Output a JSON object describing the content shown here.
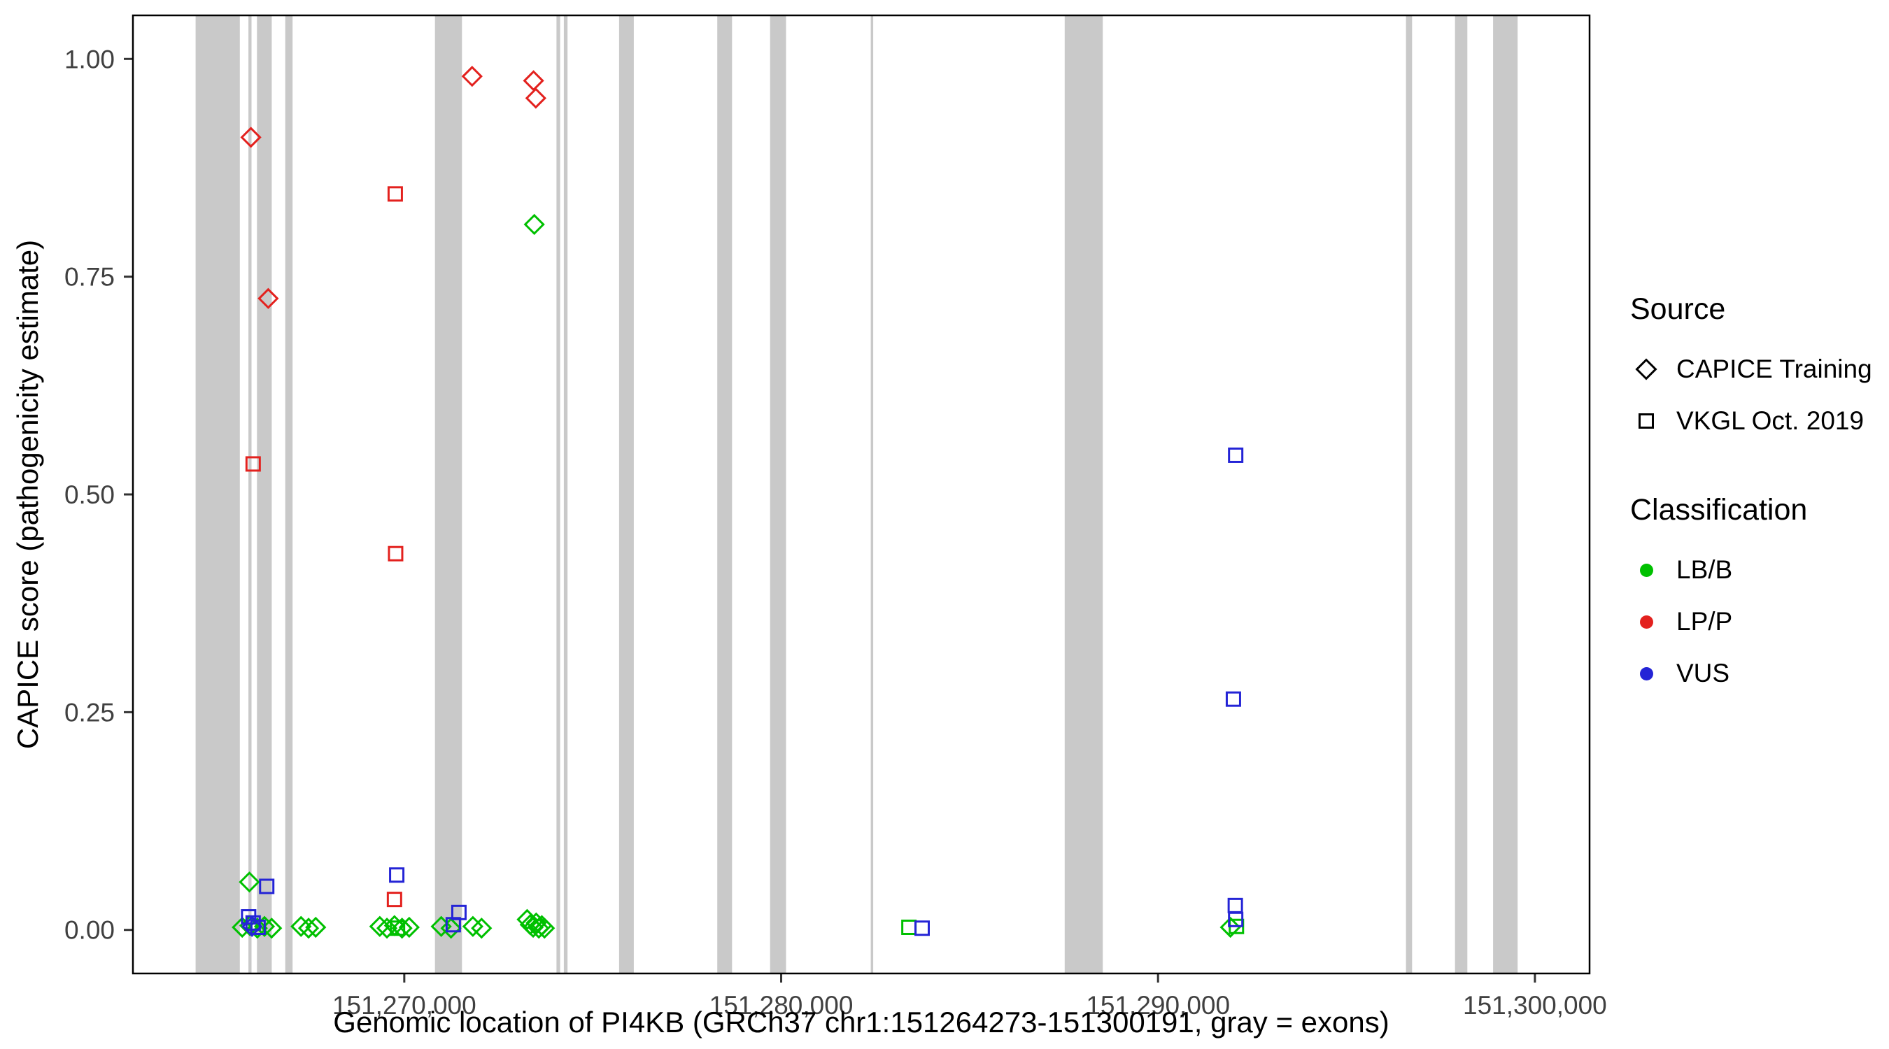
{
  "figure": {
    "xlabel": "Genomic location of PI4KB (GRCh37 chr1:151264273-151300191, gray = exons)",
    "ylabel": "CAPICE score (pathogenicity estimate)"
  },
  "legend": {
    "source": {
      "title": "Source",
      "items": [
        {
          "label": "CAPICE Training",
          "shape": "diamond"
        },
        {
          "label": "VKGL Oct. 2019",
          "shape": "square"
        }
      ]
    },
    "classification": {
      "title": "Classification",
      "items": [
        {
          "label": "LB/B",
          "color": "#00c000"
        },
        {
          "label": "LP/P",
          "color": "#e3211e"
        },
        {
          "label": "VUS",
          "color": "#2424d6"
        }
      ]
    }
  },
  "chart_data": {
    "type": "scatter",
    "title": "",
    "xlabel": "Genomic location of PI4KB (GRCh37 chr1:151264273-151300191, gray = exons)",
    "ylabel": "CAPICE score (pathogenicity estimate)",
    "xlim": [
      151262800,
      151301450
    ],
    "ylim": [
      -0.05,
      1.05
    ],
    "grid": false,
    "legend_position": "right",
    "exon_color": "#c9c9c9",
    "tick_label_color": "#404040",
    "x_ticks": [
      {
        "value": 151270000,
        "label": "151,270,000"
      },
      {
        "value": 151280000,
        "label": "151,280,000"
      },
      {
        "value": 151290000,
        "label": "151,290,000"
      },
      {
        "value": 151300000,
        "label": "151,300,000"
      }
    ],
    "y_ticks": [
      {
        "value": 0.0,
        "label": "0.00"
      },
      {
        "value": 0.25,
        "label": "0.25"
      },
      {
        "value": 0.5,
        "label": "0.50"
      },
      {
        "value": 0.75,
        "label": "0.75"
      },
      {
        "value": 1.0,
        "label": "1.00"
      }
    ],
    "exons": [
      [
        151264463,
        151265636
      ],
      [
        151265864,
        151265945
      ],
      [
        151266092,
        151266483
      ],
      [
        151266841,
        151267036
      ],
      [
        151270814,
        151271531
      ],
      [
        151274039,
        151274136
      ],
      [
        151274234,
        151274332
      ],
      [
        151275700,
        151276090
      ],
      [
        151278305,
        151278696
      ],
      [
        151279706,
        151280129
      ],
      [
        151282377,
        151282442
      ],
      [
        151287523,
        151288533
      ],
      [
        151296578,
        151296740
      ],
      [
        151297880,
        151298206
      ],
      [
        151298890,
        151299541
      ]
    ],
    "classification_colors": {
      "LB/B": "#00c000",
      "LP/P": "#e3211e",
      "VUS": "#2424d6"
    },
    "source_shapes": {
      "CAPICE Training": "diamond",
      "VKGL Oct. 2019": "square"
    },
    "series": [
      {
        "name": "CAPICE Training / LP/P",
        "source": "CAPICE Training",
        "classification": "LP/P",
        "shape": "diamond",
        "points": [
          [
            151265930,
            0.91
          ],
          [
            151266390,
            0.725
          ],
          [
            151271800,
            0.98
          ],
          [
            151273430,
            0.975
          ],
          [
            151273490,
            0.955
          ]
        ]
      },
      {
        "name": "CAPICE Training / LB/B",
        "source": "CAPICE Training",
        "classification": "LB/B",
        "shape": "diamond",
        "points": [
          [
            151273450,
            0.81
          ],
          [
            151265890,
            0.055
          ],
          [
            151265700,
            0.003
          ],
          [
            151265900,
            0.005
          ],
          [
            151266100,
            0.002
          ],
          [
            151266290,
            0.004
          ],
          [
            151266480,
            0.002
          ],
          [
            151267260,
            0.004
          ],
          [
            151267460,
            0.002
          ],
          [
            151267650,
            0.003
          ],
          [
            151269350,
            0.004
          ],
          [
            151269540,
            0.002
          ],
          [
            151269740,
            0.005
          ],
          [
            151269940,
            0.002
          ],
          [
            151270130,
            0.003
          ],
          [
            151270980,
            0.004
          ],
          [
            151271240,
            0.002
          ],
          [
            151271820,
            0.004
          ],
          [
            151272050,
            0.002
          ],
          [
            151273260,
            0.012
          ],
          [
            151273340,
            0.006
          ],
          [
            151273420,
            0.003
          ],
          [
            151273500,
            0.008
          ],
          [
            151273570,
            0.002
          ],
          [
            151273650,
            0.005
          ],
          [
            151273720,
            0.002
          ],
          [
            151291920,
            0.003
          ]
        ]
      },
      {
        "name": "CAPICE Training / VUS",
        "source": "CAPICE Training",
        "classification": "VUS",
        "shape": "diamond",
        "points": [
          [
            151265960,
            0.004
          ]
        ]
      },
      {
        "name": "VKGL Oct. 2019 / LP/P",
        "source": "VKGL Oct. 2019",
        "classification": "LP/P",
        "shape": "square",
        "points": [
          [
            151265990,
            0.535
          ],
          [
            151269760,
            0.845
          ],
          [
            151269770,
            0.432
          ],
          [
            151269740,
            0.035
          ]
        ]
      },
      {
        "name": "VKGL Oct. 2019 / LB/B",
        "source": "VKGL Oct. 2019",
        "classification": "LB/B",
        "shape": "square",
        "points": [
          [
            151283390,
            0.003
          ],
          [
            151292080,
            0.004
          ],
          [
            151269820,
            0.002
          ]
        ]
      },
      {
        "name": "VKGL Oct. 2019 / VUS",
        "source": "VKGL Oct. 2019",
        "classification": "VUS",
        "shape": "square",
        "points": [
          [
            151266350,
            0.05
          ],
          [
            151269800,
            0.063
          ],
          [
            151265870,
            0.015
          ],
          [
            151265990,
            0.008
          ],
          [
            151266120,
            0.003
          ],
          [
            151271450,
            0.02
          ],
          [
            151271300,
            0.006
          ],
          [
            151283740,
            0.002
          ],
          [
            151292060,
            0.545
          ],
          [
            151292000,
            0.265
          ],
          [
            151292050,
            0.028
          ],
          [
            151292060,
            0.012
          ]
        ]
      }
    ]
  }
}
